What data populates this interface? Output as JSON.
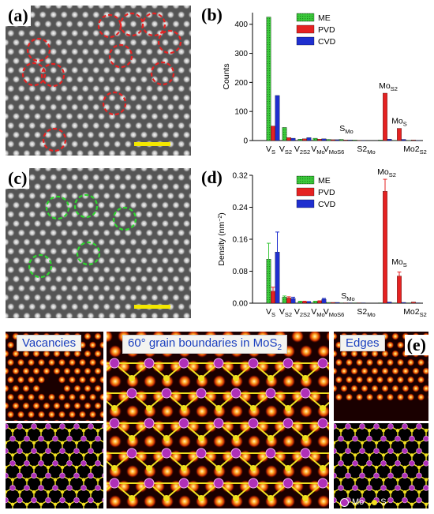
{
  "panels": {
    "a": {
      "label": "(a)"
    },
    "b": {
      "label": "(b)"
    },
    "c": {
      "label": "(c)"
    },
    "d": {
      "label": "(d)"
    },
    "e": {
      "label": "(e)"
    }
  },
  "panel_e": {
    "vacancies_title": "Vacancies",
    "gb_title": "60° grain boundaries in MoS",
    "gb_title_sub": "2",
    "edges_title": "Edges",
    "legend_mo": "Mo",
    "legend_s": "S"
  },
  "colors": {
    "ME": "#3cc83c",
    "PVD": "#e52222",
    "CVD": "#1f2fcf",
    "mo": "#b030b8",
    "s": "#f0e020",
    "marker_a": "#e52222",
    "marker_c": "#2ed52e",
    "scalebar": "#f4e800"
  },
  "chart_data": [
    {
      "type": "bar",
      "panel": "b",
      "ylabel": "Counts",
      "ylim": [
        0,
        440
      ],
      "yticks": [
        0,
        100,
        200,
        300,
        400
      ],
      "legend": [
        "ME",
        "PVD",
        "CVD"
      ],
      "legend_position": "top-left",
      "categories": [
        "V_S",
        "V_S2",
        "V_2S2",
        "V_Mo",
        "V_MoS6",
        "S_Mo",
        "S2_Mo",
        "Mo_S2",
        "Mo_S",
        "Mo2_S2"
      ],
      "series": [
        {
          "name": "ME",
          "values": [
            425,
            45,
            5,
            8,
            4,
            4,
            2,
            2,
            1,
            1
          ]
        },
        {
          "name": "PVD",
          "values": [
            50,
            10,
            6,
            5,
            3,
            2,
            1,
            163,
            42,
            2
          ]
        },
        {
          "name": "CVD",
          "values": [
            155,
            8,
            10,
            6,
            3,
            2,
            1,
            5,
            4,
            1
          ]
        }
      ],
      "tick_labels": [
        {
          "main": "V",
          "sub": "S"
        },
        {
          "main": "V",
          "sub": "S2"
        },
        {
          "main": "V",
          "sub": "2S2"
        },
        {
          "main": "V",
          "sub": "Mo"
        },
        {
          "main": "V",
          "sub": "MoS6"
        },
        {
          "main": "S2",
          "sub": "Mo"
        },
        {
          "main": "Mo2",
          "sub": "S2"
        }
      ],
      "annotations": [
        {
          "main": "S",
          "sub": "Mo"
        },
        {
          "main": "Mo",
          "sub": "S2"
        },
        {
          "main": "Mo",
          "sub": "S"
        }
      ]
    },
    {
      "type": "bar",
      "panel": "d",
      "ylabel_main": "Density (nm",
      "ylabel_sup": "−2",
      "ylabel_end": ")",
      "ylim": [
        0,
        0.32
      ],
      "yticks": [
        "0.00",
        "0.08",
        "0.16",
        "0.24",
        "0.32"
      ],
      "legend": [
        "ME",
        "PVD",
        "CVD"
      ],
      "legend_position": "top-left",
      "categories": [
        "V_S",
        "V_S2",
        "V_2S2",
        "V_Mo",
        "V_MoS6",
        "S_Mo",
        "S2_Mo",
        "Mo_S2",
        "Mo_S",
        "Mo2_S2"
      ],
      "series": [
        {
          "name": "ME",
          "values": [
            0.11,
            0.015,
            0.004,
            0.004,
            0.002,
            0.001,
            0.001,
            0.001,
            0.001,
            0.001
          ],
          "errors": [
            0.04,
            0.003,
            0.001,
            0.001,
            0.0,
            0.0,
            0.0,
            0.0,
            0.0,
            0.0
          ]
        },
        {
          "name": "PVD",
          "values": [
            0.03,
            0.013,
            0.004,
            0.005,
            0.002,
            0.001,
            0.001,
            0.28,
            0.068,
            0.003
          ],
          "errors": [
            0.01,
            0.003,
            0.001,
            0.001,
            0.0,
            0.0,
            0.0,
            0.03,
            0.01,
            0.0
          ]
        },
        {
          "name": "CVD",
          "values": [
            0.128,
            0.012,
            0.003,
            0.01,
            0.002,
            0.001,
            0.001,
            0.003,
            0.002,
            0.001
          ],
          "errors": [
            0.05,
            0.003,
            0.001,
            0.002,
            0.0,
            0.0,
            0.0,
            0.0,
            0.0,
            0.0
          ]
        }
      ],
      "tick_labels": [
        {
          "main": "V",
          "sub": "S"
        },
        {
          "main": "V",
          "sub": "S2"
        },
        {
          "main": "V",
          "sub": "2S2"
        },
        {
          "main": "V",
          "sub": "Mo"
        },
        {
          "main": "V",
          "sub": "MoS6"
        },
        {
          "main": "S2",
          "sub": "Mo"
        },
        {
          "main": "Mo2",
          "sub": "S2"
        }
      ],
      "annotations": [
        {
          "main": "S",
          "sub": "Mo"
        },
        {
          "main": "Mo",
          "sub": "S2"
        },
        {
          "main": "Mo",
          "sub": "S"
        }
      ]
    }
  ]
}
